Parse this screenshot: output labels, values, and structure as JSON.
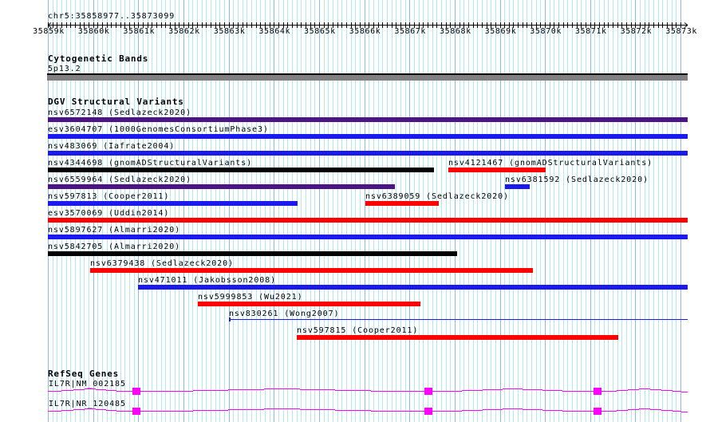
{
  "ruler": {
    "location": "chr5:35858977..35873099",
    "ticks": [
      "35859k",
      "35860k",
      "35861k",
      "35862k",
      "35863k",
      "35864k",
      "35865k",
      "35866k",
      "35867k",
      "35868k",
      "35869k",
      "35870k",
      "35871k",
      "35872k",
      "35873k"
    ]
  },
  "cytobands": {
    "title": "Cytogenetic Bands",
    "band": "5p13.2",
    "band_color": "#808080"
  },
  "dgv": {
    "title": "DGV Structural Variants",
    "features": [
      {
        "label": "nsv6572148 (Sedlazeck2020)",
        "color": "#4b1487"
      },
      {
        "label": "esv3604707 (1000GenomesConsortiumPhase3)",
        "color": "#1a1aee"
      },
      {
        "label": "nsv483069 (Iafrate2004)",
        "color": "#1a1aee"
      },
      {
        "label": "nsv4344698 (gnomADStructuralVariants)",
        "color": "#000000"
      },
      {
        "label": "nsv4121467 (gnomADStructuralVariants)",
        "color": "#ff0000"
      },
      {
        "label": "nsv6559964 (Sedlazeck2020)",
        "color": "#4b1487"
      },
      {
        "label": "nsv6381592 (Sedlazeck2020)",
        "color": "#1a1aee"
      },
      {
        "label": "nsv597813 (Cooper2011)",
        "color": "#1a1aee"
      },
      {
        "label": "nsv6389059 (Sedlazeck2020)",
        "color": "#ff0000"
      },
      {
        "label": "esv3570069 (Uddin2014)",
        "color": "#ff0000"
      },
      {
        "label": "nsv5897627 (Almarri2020)",
        "color": "#1a1aee"
      },
      {
        "label": "nsv5842705 (Almarri2020)",
        "color": "#000000"
      },
      {
        "label": "nsv6379438 (Sedlazeck2020)",
        "color": "#ff0000"
      },
      {
        "label": "nsv471011 (Jakobsson2008)",
        "color": "#1a1aee"
      },
      {
        "label": "nsv5999853 (Wu2021)",
        "color": "#ff0000"
      },
      {
        "label": "nsv830261 (Wong2007)",
        "color": "#1a1aee"
      },
      {
        "label": "nsv597815 (Cooper2011)",
        "color": "#ff0000"
      }
    ]
  },
  "refseq": {
    "title": "RefSeq Genes",
    "color": "#ff00ff",
    "transcripts": [
      {
        "label": "IL7R|NM_002185"
      },
      {
        "label": "IL7R|NR_120485"
      }
    ]
  }
}
